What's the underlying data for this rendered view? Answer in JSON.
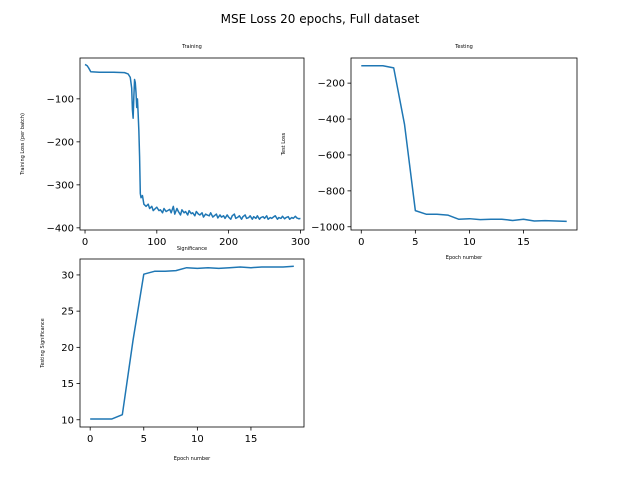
{
  "figure": {
    "suptitle": "MSE Loss 20 epochs, Full dataset",
    "line_color": "#1f77b4"
  },
  "chart_data": [
    {
      "type": "line",
      "title": "Training",
      "xlabel": "Significance",
      "ylabel": "Training Loss (per batch)",
      "xlim": [
        -7,
        305
      ],
      "ylim": [
        -405,
        -5
      ],
      "xticks": [
        0,
        100,
        200,
        300
      ],
      "yticks": [
        -100,
        -200,
        -300,
        -400
      ],
      "grid": false,
      "series": [
        {
          "x": [
            0,
            3,
            5,
            8,
            20,
            40,
            55,
            60,
            63,
            65,
            66,
            67,
            68,
            69,
            70,
            71,
            72,
            73,
            74,
            75,
            76,
            77,
            78,
            80,
            82,
            85,
            88,
            90,
            93,
            95,
            98,
            100,
            103,
            105,
            108,
            110,
            113,
            115,
            118,
            120,
            123,
            125,
            128,
            130,
            133,
            135,
            138,
            140,
            143,
            145,
            148,
            150,
            153,
            155,
            158,
            160,
            163,
            165,
            168,
            170,
            173,
            175,
            178,
            180,
            183,
            185,
            188,
            190,
            193,
            195,
            198,
            200,
            203,
            205,
            208,
            210,
            213,
            215,
            218,
            220,
            223,
            225,
            228,
            230,
            233,
            235,
            238,
            240,
            243,
            245,
            248,
            250,
            253,
            255,
            258,
            260,
            263,
            265,
            268,
            270,
            273,
            275,
            278,
            280,
            283,
            285,
            288,
            290,
            293,
            295,
            298,
            300
          ],
          "y": [
            -20,
            -23,
            -28,
            -37,
            -38,
            -38,
            -39,
            -42,
            -50,
            -75,
            -125,
            -145,
            -95,
            -55,
            -62,
            -85,
            -120,
            -100,
            -135,
            -175,
            -235,
            -320,
            -330,
            -325,
            -345,
            -350,
            -345,
            -355,
            -350,
            -360,
            -355,
            -352,
            -360,
            -358,
            -365,
            -355,
            -362,
            -360,
            -357,
            -365,
            -350,
            -368,
            -355,
            -362,
            -370,
            -358,
            -365,
            -362,
            -370,
            -360,
            -367,
            -365,
            -372,
            -362,
            -368,
            -370,
            -365,
            -375,
            -368,
            -370,
            -372,
            -365,
            -375,
            -372,
            -368,
            -377,
            -370,
            -375,
            -372,
            -378,
            -370,
            -375,
            -380,
            -372,
            -368,
            -378,
            -375,
            -372,
            -380,
            -374,
            -370,
            -378,
            -376,
            -372,
            -380,
            -374,
            -378,
            -372,
            -380,
            -376,
            -374,
            -378,
            -372,
            -380,
            -376,
            -378,
            -374,
            -372,
            -380,
            -376,
            -378,
            -373,
            -379,
            -376,
            -374,
            -380,
            -376,
            -378,
            -373,
            -377,
            -379,
            -378
          ]
        }
      ]
    },
    {
      "type": "line",
      "title": "Testing",
      "xlabel": "Epoch number",
      "ylabel": "Test Loss",
      "xlim": [
        -0.95,
        19.95
      ],
      "ylim": [
        -1018,
        -60
      ],
      "xticks": [
        0,
        5,
        10,
        15
      ],
      "yticks": [
        -200,
        -400,
        -600,
        -800,
        -1000
      ],
      "grid": false,
      "series": [
        {
          "x": [
            0,
            1,
            2,
            3,
            4,
            5,
            6,
            7,
            8,
            9,
            10,
            11,
            12,
            13,
            14,
            15,
            16,
            17,
            18,
            19
          ],
          "y": [
            -103,
            -103,
            -103,
            -115,
            -430,
            -910,
            -930,
            -930,
            -935,
            -958,
            -955,
            -960,
            -958,
            -958,
            -965,
            -958,
            -968,
            -966,
            -968,
            -970
          ]
        }
      ]
    },
    {
      "type": "line",
      "title": "",
      "xlabel": "Epoch number",
      "ylabel": "Testing Significance",
      "xlim": [
        -0.95,
        19.95
      ],
      "ylim": [
        9.0,
        32.2
      ],
      "xticks": [
        0,
        5,
        10,
        15
      ],
      "yticks": [
        10,
        15,
        20,
        25,
        30
      ],
      "grid": false,
      "series": [
        {
          "x": [
            0,
            1,
            2,
            3,
            4,
            5,
            6,
            7,
            8,
            9,
            10,
            11,
            12,
            13,
            14,
            15,
            16,
            17,
            18,
            19
          ],
          "y": [
            10.1,
            10.1,
            10.1,
            10.7,
            21.0,
            30.1,
            30.5,
            30.5,
            30.6,
            31.0,
            30.9,
            31.0,
            30.9,
            31.0,
            31.1,
            31.0,
            31.1,
            31.1,
            31.1,
            31.2
          ]
        }
      ]
    }
  ]
}
